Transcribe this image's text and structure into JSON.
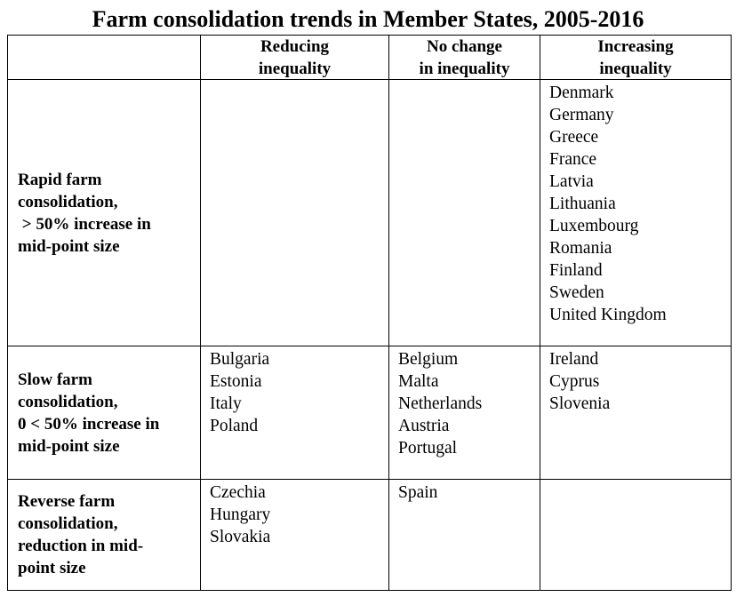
{
  "title": "Farm consolidation trends in Member States, 2005-2016",
  "columns": [
    {
      "line1": "Reducing",
      "line2": "inequality"
    },
    {
      "line1": "No change",
      "line2": "in inequality"
    },
    {
      "line1": "Increasing",
      "line2": "inequality"
    }
  ],
  "rows": [
    {
      "label": [
        "Rapid farm",
        "consolidation,",
        " > 50% increase in",
        "mid-point size"
      ],
      "reducing": [],
      "no_change": [],
      "increasing": [
        "Denmark",
        "Germany",
        "Greece",
        "France",
        "Latvia",
        "Lithuania",
        "Luxembourg",
        "Romania",
        "Finland",
        "Sweden",
        "United Kingdom"
      ]
    },
    {
      "label": [
        "Slow farm",
        "consolidation,",
        "0 < 50% increase in",
        "mid-point size"
      ],
      "reducing": [
        "Bulgaria",
        "Estonia",
        "Italy",
        "Poland"
      ],
      "no_change": [
        "Belgium",
        "Malta",
        "Netherlands",
        "Austria",
        "Portugal"
      ],
      "increasing": [
        "Ireland",
        "Cyprus",
        "Slovenia"
      ]
    },
    {
      "label": [
        "Reverse farm",
        "consolidation,",
        "reduction in mid-",
        "point size"
      ],
      "reducing": [
        "Czechia",
        "Hungary",
        "Slovakia"
      ],
      "no_change": [
        "Spain"
      ],
      "increasing": []
    }
  ]
}
